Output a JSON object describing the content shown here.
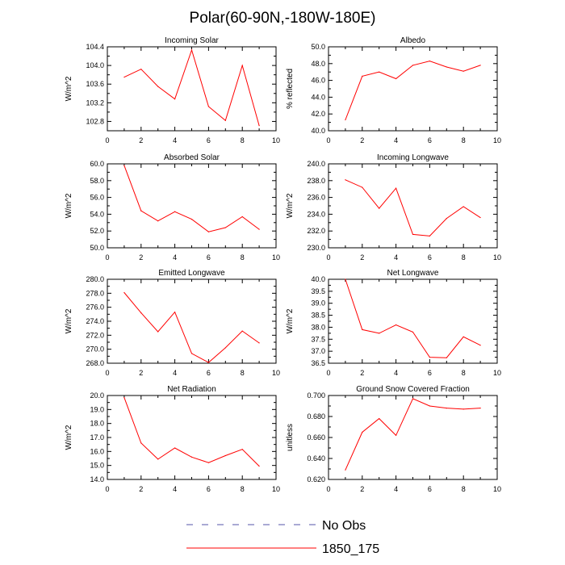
{
  "figure_title": "Polar(60-90N,-180W-180E)",
  "legend": {
    "entries": [
      {
        "label": "No Obs",
        "style": "dashed",
        "color": "#5555aa"
      },
      {
        "label": "1850_175",
        "style": "solid",
        "color": "#ff0000"
      }
    ]
  },
  "chart_data": [
    {
      "type": "line",
      "title": "Incoming Solar",
      "ylabel": "W/m^2",
      "x": [
        1,
        2,
        3,
        4,
        5,
        6,
        7,
        8,
        9
      ],
      "values": [
        103.75,
        103.92,
        103.55,
        103.28,
        104.33,
        103.12,
        102.82,
        104.0,
        102.71
      ],
      "xlim": [
        0,
        10
      ],
      "ylim": [
        102.6,
        104.4
      ],
      "xticks": [
        "0",
        "2",
        "4",
        "6",
        "8",
        "10"
      ],
      "yticks": [
        "102.8",
        "103.2",
        "103.6",
        "104.0",
        "104.4"
      ],
      "series_color": "#ff0000"
    },
    {
      "type": "line",
      "title": "Albedo",
      "ylabel": "% reflected",
      "x": [
        1,
        2,
        3,
        4,
        5,
        6,
        7,
        8,
        9
      ],
      "values": [
        41.3,
        46.5,
        47.0,
        46.2,
        47.8,
        48.3,
        47.6,
        47.1,
        47.8
      ],
      "xlim": [
        0,
        10
      ],
      "ylim": [
        40,
        50
      ],
      "xticks": [
        "0",
        "2",
        "4",
        "6",
        "8",
        "10"
      ],
      "yticks": [
        "40.0",
        "42.0",
        "44.0",
        "46.0",
        "48.0",
        "50.0"
      ],
      "series_color": "#ff0000"
    },
    {
      "type": "line",
      "title": "Absorbed Solar",
      "ylabel": "W/m^2",
      "x": [
        1,
        2,
        3,
        4,
        5,
        6,
        7,
        8,
        9
      ],
      "values": [
        59.8,
        54.4,
        53.2,
        54.3,
        53.4,
        51.9,
        52.4,
        53.7,
        52.2
      ],
      "xlim": [
        0,
        10
      ],
      "ylim": [
        50,
        60
      ],
      "xticks": [
        "0",
        "2",
        "4",
        "6",
        "8",
        "10"
      ],
      "yticks": [
        "50.0",
        "52.0",
        "54.0",
        "56.0",
        "58.0",
        "60.0"
      ],
      "series_color": "#ff0000"
    },
    {
      "type": "line",
      "title": "Incoming Longwave",
      "ylabel": "W/m^2",
      "x": [
        1,
        2,
        3,
        4,
        5,
        6,
        7,
        8,
        9
      ],
      "values": [
        238.1,
        237.2,
        234.7,
        237.1,
        231.6,
        231.4,
        233.5,
        234.9,
        233.6
      ],
      "xlim": [
        0,
        10
      ],
      "ylim": [
        230,
        240
      ],
      "xticks": [
        "0",
        "2",
        "4",
        "6",
        "8",
        "10"
      ],
      "yticks": [
        "230.0",
        "232.0",
        "234.0",
        "236.0",
        "238.0",
        "240.0"
      ],
      "series_color": "#ff0000"
    },
    {
      "type": "line",
      "title": "Emitted Longwave",
      "ylabel": "W/m^2",
      "x": [
        1,
        2,
        3,
        4,
        5,
        6,
        7,
        8,
        9
      ],
      "values": [
        278.1,
        275.2,
        272.5,
        275.3,
        269.4,
        268.1,
        270.2,
        272.6,
        270.9
      ],
      "xlim": [
        0,
        10
      ],
      "ylim": [
        268,
        280
      ],
      "xticks": [
        "0",
        "2",
        "4",
        "6",
        "8",
        "10"
      ],
      "yticks": [
        "268.0",
        "270.0",
        "272.0",
        "274.0",
        "276.0",
        "278.0",
        "280.0"
      ],
      "series_color": "#ff0000"
    },
    {
      "type": "line",
      "title": "Net Longwave",
      "ylabel": "W/m^2",
      "x": [
        1,
        2,
        3,
        4,
        5,
        6,
        7,
        8,
        9
      ],
      "values": [
        40.0,
        37.9,
        37.75,
        38.1,
        37.8,
        36.75,
        36.73,
        37.6,
        37.25
      ],
      "xlim": [
        0,
        10
      ],
      "ylim": [
        36.5,
        40
      ],
      "xticks": [
        "0",
        "2",
        "4",
        "6",
        "8",
        "10"
      ],
      "yticks": [
        "36.5",
        "37.0",
        "37.5",
        "38.0",
        "38.5",
        "39.0",
        "39.5",
        "40.0"
      ],
      "series_color": "#ff0000"
    },
    {
      "type": "line",
      "title": "Net Radiation",
      "ylabel": "W/m^2",
      "x": [
        1,
        2,
        3,
        4,
        5,
        6,
        7,
        8,
        9
      ],
      "values": [
        19.85,
        16.6,
        15.45,
        16.25,
        15.6,
        15.2,
        15.7,
        16.15,
        14.95
      ],
      "xlim": [
        0,
        10
      ],
      "ylim": [
        14,
        20
      ],
      "xticks": [
        "0",
        "2",
        "4",
        "6",
        "8",
        "10"
      ],
      "yticks": [
        "14.0",
        "15.0",
        "16.0",
        "17.0",
        "18.0",
        "19.0",
        "20.0"
      ],
      "series_color": "#ff0000"
    },
    {
      "type": "line",
      "title": "Ground Snow Covered Fraction",
      "ylabel": "unitless",
      "x": [
        1,
        2,
        3,
        4,
        5,
        6,
        7,
        8,
        9
      ],
      "values": [
        0.629,
        0.665,
        0.678,
        0.662,
        0.697,
        0.69,
        0.688,
        0.687,
        0.688
      ],
      "xlim": [
        0,
        10
      ],
      "ylim": [
        0.62,
        0.7
      ],
      "xticks": [
        "0",
        "2",
        "4",
        "6",
        "8",
        "10"
      ],
      "yticks": [
        "0.620",
        "0.640",
        "0.660",
        "0.680",
        "0.700"
      ],
      "series_color": "#ff0000"
    }
  ]
}
